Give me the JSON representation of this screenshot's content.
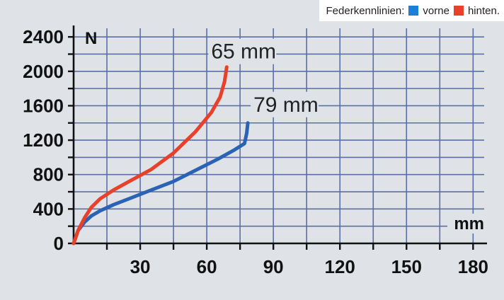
{
  "chart_data": {
    "type": "line",
    "title": "",
    "xlabel": "mm",
    "ylabel": "N",
    "xlim": [
      0,
      185
    ],
    "ylim": [
      0,
      2500
    ],
    "x_ticks": [
      30,
      60,
      90,
      120,
      150,
      180
    ],
    "y_ticks": [
      0,
      400,
      800,
      1200,
      1600,
      2000,
      2400
    ],
    "grid": true,
    "legend": {
      "title": "Federkennlinien:",
      "placement": "top-right",
      "items": [
        {
          "label": "vorne",
          "color": "#1a7fd6"
        },
        {
          "label": "hinten.",
          "color": "#e8402b"
        }
      ]
    },
    "series": [
      {
        "name": "vorne",
        "color": "#2a63b5",
        "x": [
          0,
          2,
          5,
          8,
          12,
          18,
          25,
          35,
          45,
          55,
          65,
          72,
          77,
          78,
          78.5
        ],
        "y": [
          0,
          150,
          250,
          320,
          380,
          450,
          520,
          620,
          720,
          850,
          980,
          1080,
          1160,
          1280,
          1400
        ]
      },
      {
        "name": "hinten.",
        "color": "#e8402b",
        "x": [
          0,
          2,
          5,
          8,
          12,
          18,
          25,
          35,
          45,
          55,
          62,
          66,
          68,
          69
        ],
        "y": [
          0,
          150,
          300,
          420,
          520,
          620,
          720,
          860,
          1050,
          1300,
          1520,
          1700,
          1880,
          2050
        ]
      }
    ],
    "annotations": [
      {
        "text": "65 mm",
        "series": "hinten."
      },
      {
        "text": "79 mm",
        "series": "vorne"
      }
    ]
  }
}
